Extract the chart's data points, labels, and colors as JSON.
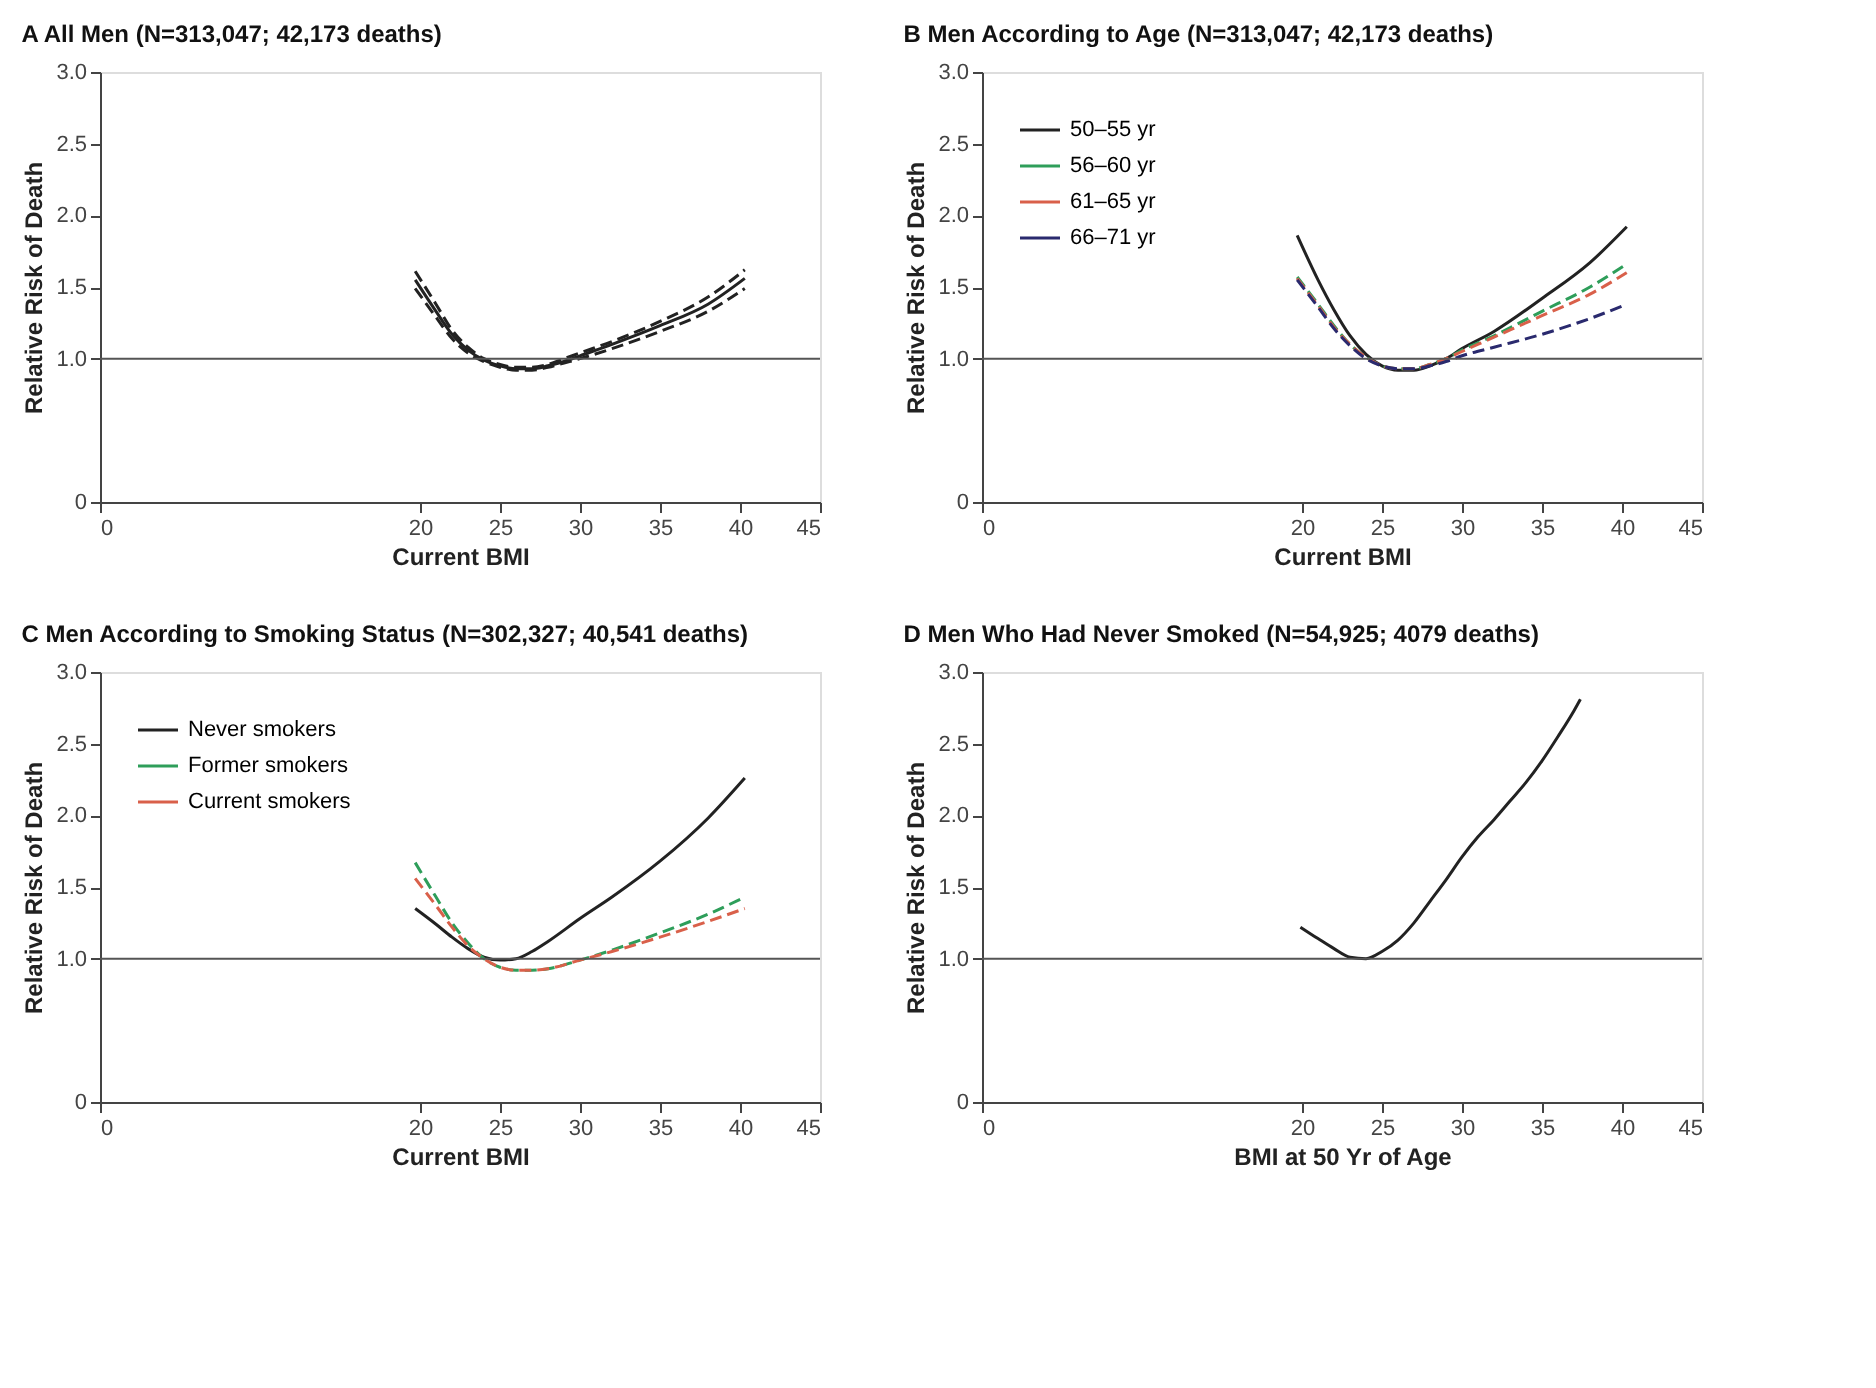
{
  "chart_data": [
    {
      "type": "line",
      "title": "A  All Men (N=313,047; 42,173 deaths)",
      "xlabel": "Current BMI",
      "ylabel": "Relative Risk of Death",
      "xlim": [
        0,
        45
      ],
      "xticks": [
        0,
        20,
        25,
        30,
        35,
        40,
        45
      ],
      "ylim": [
        0,
        3
      ],
      "yticks": [
        0,
        {
          "value": 1,
          "label": "1.0"
        },
        {
          "value": 1.5,
          "label": "1.5"
        },
        {
          "value": 2,
          "label": "2.0"
        },
        {
          "value": 2.5,
          "label": "2.5"
        },
        {
          "value": 3,
          "label": "3.0"
        }
      ],
      "grid": false,
      "marker": "none",
      "ref_lines": [
        {
          "axis": "y",
          "value": 1,
          "color": "#555555",
          "line_style": "solid"
        }
      ],
      "series": [
        {
          "color": "#222222",
          "line_style": "dashed",
          "x": [
            19.7,
            21,
            22,
            23,
            24,
            25,
            26,
            27,
            28,
            29,
            30,
            32,
            35,
            38,
            40.3
          ],
          "values": [
            1.61,
            1.38,
            1.2,
            1.08,
            1.0,
            0.96,
            0.94,
            0.94,
            0.96,
            1.0,
            1.04,
            1.12,
            1.26,
            1.43,
            1.62
          ]
        },
        {
          "color": "#222222",
          "line_style": "solid",
          "x": [
            19.7,
            21,
            22,
            23,
            24,
            25,
            26,
            27,
            28,
            29,
            30,
            32,
            35,
            38,
            40.3
          ],
          "values": [
            1.55,
            1.33,
            1.17,
            1.06,
            0.99,
            0.95,
            0.93,
            0.93,
            0.95,
            0.98,
            1.02,
            1.1,
            1.23,
            1.38,
            1.56
          ]
        },
        {
          "color": "#222222",
          "line_style": "dashed",
          "x": [
            19.7,
            21,
            22,
            23,
            24,
            25,
            26,
            27,
            28,
            29,
            30,
            32,
            35,
            38,
            40.3
          ],
          "values": [
            1.49,
            1.29,
            1.14,
            1.04,
            0.98,
            0.94,
            0.92,
            0.92,
            0.94,
            0.97,
            1.0,
            1.07,
            1.19,
            1.33,
            1.49
          ]
        }
      ]
    },
    {
      "type": "line",
      "title": "B  Men According to Age (N=313,047; 42,173 deaths)",
      "xlabel": "Current BMI",
      "ylabel": "Relative Risk of Death",
      "xlim": [
        0,
        45
      ],
      "xticks": [
        0,
        20,
        25,
        30,
        35,
        40,
        45
      ],
      "ylim": [
        0,
        3
      ],
      "yticks": [
        0,
        {
          "value": 1,
          "label": "1.0"
        },
        {
          "value": 1.5,
          "label": "1.5"
        },
        {
          "value": 2,
          "label": "2.0"
        },
        {
          "value": 2.5,
          "label": "2.5"
        },
        {
          "value": 3,
          "label": "3.0"
        }
      ],
      "grid": false,
      "legend": "top left",
      "marker": "none",
      "ref_lines": [
        {
          "axis": "y",
          "value": 1,
          "color": "#555555",
          "line_style": "solid"
        }
      ],
      "series": [
        {
          "name": "50–55 yr",
          "color": "#222222",
          "line_style": "solid",
          "x": [
            19.7,
            21,
            22,
            23,
            24,
            25,
            26,
            27,
            28,
            29,
            30,
            32,
            35,
            38,
            40.3
          ],
          "values": [
            1.86,
            1.55,
            1.34,
            1.16,
            1.03,
            0.95,
            0.92,
            0.92,
            0.95,
            1.0,
            1.07,
            1.19,
            1.42,
            1.67,
            1.92
          ]
        },
        {
          "name": "56–60 yr",
          "color": "#2e9e5a",
          "line_style": "dashed",
          "x": [
            19.7,
            21,
            22,
            23,
            24,
            25,
            26,
            27,
            28,
            29,
            30,
            32,
            35,
            38,
            40.3
          ],
          "values": [
            1.57,
            1.38,
            1.23,
            1.1,
            1.01,
            0.95,
            0.93,
            0.93,
            0.96,
            1.0,
            1.06,
            1.16,
            1.33,
            1.5,
            1.66
          ]
        },
        {
          "name": "61–65 yr",
          "color": "#d9604a",
          "line_style": "dashed",
          "x": [
            19.7,
            21,
            22,
            23,
            24,
            25,
            26,
            27,
            28,
            29,
            30,
            32,
            35,
            38,
            40.3
          ],
          "values": [
            1.56,
            1.37,
            1.22,
            1.1,
            1.01,
            0.95,
            0.93,
            0.93,
            0.96,
            1.0,
            1.05,
            1.15,
            1.3,
            1.45,
            1.6
          ]
        },
        {
          "name": "66–71 yr",
          "color": "#2a2a6e",
          "line_style": "dashed",
          "x": [
            19.7,
            21,
            22,
            23,
            24,
            25,
            26,
            27,
            28,
            29,
            30,
            32,
            35,
            38,
            40.3
          ],
          "values": [
            1.55,
            1.36,
            1.21,
            1.09,
            1.0,
            0.95,
            0.93,
            0.93,
            0.95,
            0.98,
            1.02,
            1.08,
            1.17,
            1.28,
            1.38
          ]
        }
      ]
    },
    {
      "type": "line",
      "title": "C  Men According to Smoking Status (N=302,327; 40,541 deaths)",
      "xlabel": "Current BMI",
      "ylabel": "Relative Risk of Death",
      "xlim": [
        0,
        45
      ],
      "xticks": [
        0,
        20,
        25,
        30,
        35,
        40,
        45
      ],
      "ylim": [
        0,
        3
      ],
      "yticks": [
        0,
        {
          "value": 1,
          "label": "1.0"
        },
        {
          "value": 1.5,
          "label": "1.5"
        },
        {
          "value": 2,
          "label": "2.0"
        },
        {
          "value": 2.5,
          "label": "2.5"
        },
        {
          "value": 3,
          "label": "3.0"
        }
      ],
      "grid": false,
      "legend": "top left",
      "marker": "none",
      "ref_lines": [
        {
          "axis": "y",
          "value": 1,
          "color": "#555555",
          "line_style": "solid"
        }
      ],
      "series": [
        {
          "name": "Never smokers",
          "color": "#222222",
          "line_style": "solid",
          "x": [
            19.7,
            21,
            22,
            23,
            24,
            25,
            26,
            27,
            28,
            30,
            32,
            35,
            38,
            40.3
          ],
          "values": [
            1.35,
            1.24,
            1.15,
            1.07,
            1.01,
            0.99,
            1.0,
            1.05,
            1.12,
            1.28,
            1.43,
            1.68,
            1.98,
            2.26
          ]
        },
        {
          "name": "Former smokers",
          "color": "#2e9e5a",
          "line_style": "dashed",
          "x": [
            19.7,
            21,
            22,
            23,
            24,
            25,
            26,
            27,
            28,
            30,
            32,
            35,
            38,
            40.3
          ],
          "values": [
            1.67,
            1.43,
            1.25,
            1.11,
            1.0,
            0.94,
            0.92,
            0.92,
            0.93,
            0.99,
            1.06,
            1.18,
            1.31,
            1.43
          ]
        },
        {
          "name": "Current smokers",
          "color": "#d9604a",
          "line_style": "dashed",
          "x": [
            19.7,
            21,
            22,
            23,
            24,
            25,
            26,
            27,
            28,
            30,
            32,
            35,
            38,
            40.3
          ],
          "values": [
            1.56,
            1.37,
            1.22,
            1.09,
            1.0,
            0.94,
            0.92,
            0.92,
            0.93,
            0.99,
            1.05,
            1.15,
            1.26,
            1.35
          ]
        }
      ]
    },
    {
      "type": "line",
      "title": "D  Men Who Had Never Smoked (N=54,925; 4079 deaths)",
      "xlabel": "BMI at 50 Yr of Age",
      "ylabel": "Relative Risk of Death",
      "xlim": [
        0,
        45
      ],
      "xticks": [
        0,
        20,
        25,
        30,
        35,
        40,
        45
      ],
      "ylim": [
        0,
        3
      ],
      "yticks": [
        0,
        {
          "value": 1,
          "label": "1.0"
        },
        {
          "value": 1.5,
          "label": "1.5"
        },
        {
          "value": 2,
          "label": "2.0"
        },
        {
          "value": 2.5,
          "label": "2.5"
        },
        {
          "value": 3,
          "label": "3.0"
        }
      ],
      "grid": false,
      "marker": "none",
      "ref_lines": [
        {
          "axis": "y",
          "value": 1,
          "color": "#555555",
          "line_style": "solid"
        }
      ],
      "series": [
        {
          "color": "#222222",
          "line_style": "solid",
          "x": [
            19.9,
            21,
            22,
            23,
            24,
            25,
            26,
            27,
            28,
            29,
            30,
            31,
            32,
            33,
            34,
            35,
            36,
            37,
            37.4
          ],
          "values": [
            1.22,
            1.14,
            1.07,
            1.01,
            1.0,
            1.05,
            1.13,
            1.25,
            1.4,
            1.55,
            1.71,
            1.85,
            1.97,
            2.1,
            2.23,
            2.38,
            2.55,
            2.73,
            2.81
          ]
        }
      ]
    }
  ]
}
